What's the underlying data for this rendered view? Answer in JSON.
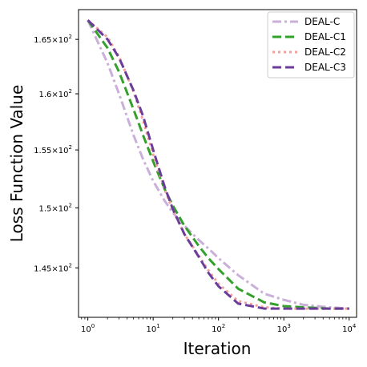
{
  "chart_data": {
    "type": "line",
    "xlabel": "Iteration",
    "ylabel": "Loss Function Value",
    "xscale": "log",
    "yscale": "log",
    "xlim": [
      0.72,
      13000
    ],
    "ylim": [
      141.0,
      167.8
    ],
    "x_ticks": [
      {
        "base": "10",
        "exp": "0",
        "value": 1
      },
      {
        "base": "10",
        "exp": "1",
        "value": 10
      },
      {
        "base": "10",
        "exp": "2",
        "value": 100
      },
      {
        "base": "10",
        "exp": "3",
        "value": 1000
      },
      {
        "base": "10",
        "exp": "4",
        "value": 10000
      }
    ],
    "y_ticks": [
      {
        "mant": "1.45",
        "base": "10",
        "exp": "2",
        "value": 145
      },
      {
        "mant": "1.5",
        "base": "10",
        "exp": "2",
        "value": 150
      },
      {
        "mant": "1.55",
        "base": "10",
        "exp": "2",
        "value": 155
      },
      {
        "mant": "1.6",
        "base": "10",
        "exp": "2",
        "value": 160
      },
      {
        "mant": "1.65",
        "base": "10",
        "exp": "2",
        "value": 165
      }
    ],
    "legend_position": "top-right",
    "grid": false,
    "series": [
      {
        "name": "DEAL-C",
        "color": "#c9afd9",
        "dash": "dashdot",
        "x": [
          1,
          2,
          3,
          5,
          7,
          10,
          15,
          20,
          30,
          50,
          70,
          100,
          200,
          500,
          1000,
          2000,
          5000,
          10000
        ],
        "y": [
          166.8,
          162.8,
          160.0,
          156.3,
          154.2,
          152.3,
          150.6,
          149.6,
          148.5,
          147.3,
          146.6,
          145.8,
          144.4,
          142.9,
          142.4,
          142.0,
          141.8,
          141.7
        ]
      },
      {
        "name": "DEAL-C1",
        "color": "#33a02c",
        "dash": "dashed",
        "x": [
          1,
          2,
          3,
          5,
          7,
          10,
          15,
          20,
          30,
          50,
          70,
          100,
          200,
          500,
          1000,
          2000,
          5000,
          10000
        ],
        "y": [
          166.8,
          164.2,
          162.0,
          158.6,
          156.3,
          154.0,
          151.6,
          150.2,
          148.5,
          146.8,
          145.8,
          144.9,
          143.3,
          142.2,
          141.9,
          141.8,
          141.7,
          141.7
        ]
      },
      {
        "name": "DEAL-C2",
        "color": "#f4a09c",
        "dash": "dotted",
        "x": [
          1,
          2,
          3,
          5,
          7,
          10,
          15,
          20,
          30,
          50,
          70,
          100,
          200,
          500,
          1000,
          2000,
          5000,
          10000
        ],
        "y": [
          166.8,
          165.2,
          163.4,
          160.2,
          157.6,
          154.6,
          151.6,
          149.8,
          147.8,
          146.0,
          144.8,
          143.7,
          142.3,
          141.8,
          141.7,
          141.7,
          141.7,
          141.7
        ]
      },
      {
        "name": "DEAL-C3",
        "color": "#6a3d9a",
        "dash": "dashed",
        "x": [
          1,
          2,
          3,
          5,
          7,
          10,
          15,
          20,
          30,
          50,
          70,
          100,
          200,
          500,
          1000,
          2000,
          5000,
          10000
        ],
        "y": [
          166.8,
          165.0,
          163.3,
          160.3,
          158.0,
          155.0,
          151.8,
          149.9,
          147.8,
          145.9,
          144.6,
          143.5,
          142.1,
          141.7,
          141.7,
          141.7,
          141.7,
          141.7
        ]
      }
    ]
  }
}
